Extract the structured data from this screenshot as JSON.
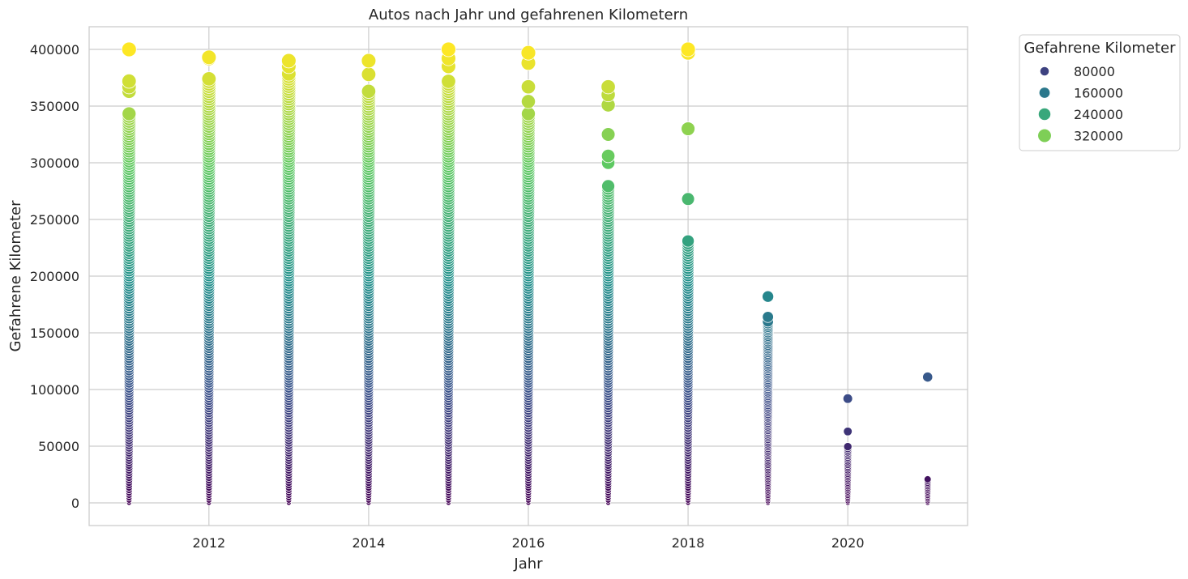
{
  "chart_data": {
    "type": "scatter",
    "title": "Autos nach Jahr und gefahrenen Kilometern",
    "xlabel": "Jahr",
    "ylabel": "Gefahrene Kilometer",
    "xlim": [
      2010.5,
      2021.5
    ],
    "ylim": [
      -20000,
      420000
    ],
    "xticks": [
      2012,
      2014,
      2016,
      2018,
      2020
    ],
    "yticks": [
      0,
      50000,
      100000,
      150000,
      200000,
      250000,
      300000,
      350000,
      400000
    ],
    "grid": true,
    "colormap": "viridis",
    "color_range": [
      0,
      400000
    ],
    "legend": {
      "title": "Gefahrene Kilometer",
      "placement": "outside-top-right",
      "entries": [
        {
          "label": "80000",
          "value": 80000
        },
        {
          "label": "160000",
          "value": 160000
        },
        {
          "label": "240000",
          "value": 240000
        },
        {
          "label": "320000",
          "value": 320000
        }
      ]
    },
    "columns": [
      {
        "year": 2011,
        "max": 400000,
        "dense_max": 345000,
        "extras": [
          363000,
          367000,
          372000,
          400000
        ]
      },
      {
        "year": 2012,
        "max": 393000,
        "dense_max": 375000,
        "extras": [
          392000,
          393000
        ]
      },
      {
        "year": 2013,
        "max": 390000,
        "dense_max": 380000,
        "extras": [
          385000,
          390000
        ]
      },
      {
        "year": 2014,
        "max": 390000,
        "dense_max": 365000,
        "extras": [
          378000,
          390000
        ]
      },
      {
        "year": 2015,
        "max": 400000,
        "dense_max": 372000,
        "extras": [
          385000,
          392000,
          400000
        ]
      },
      {
        "year": 2016,
        "max": 397000,
        "dense_max": 345000,
        "extras": [
          354000,
          367000,
          388000,
          397000
        ]
      },
      {
        "year": 2017,
        "max": 367000,
        "dense_max": 280000,
        "extras": [
          300000,
          306000,
          325000,
          351000,
          360000,
          367000
        ]
      },
      {
        "year": 2018,
        "max": 400000,
        "dense_max": 233000,
        "extras": [
          268000,
          330000,
          397000,
          400000
        ]
      },
      {
        "year": 2019,
        "max": 182000,
        "dense_max": 160000,
        "extras": [
          164000,
          182000
        ]
      },
      {
        "year": 2020,
        "max": 92000,
        "dense_max": 51000,
        "extras": [
          63000,
          92000
        ]
      },
      {
        "year": 2021,
        "max": 111000,
        "dense_max": 22000,
        "extras": [
          111000
        ]
      }
    ]
  }
}
